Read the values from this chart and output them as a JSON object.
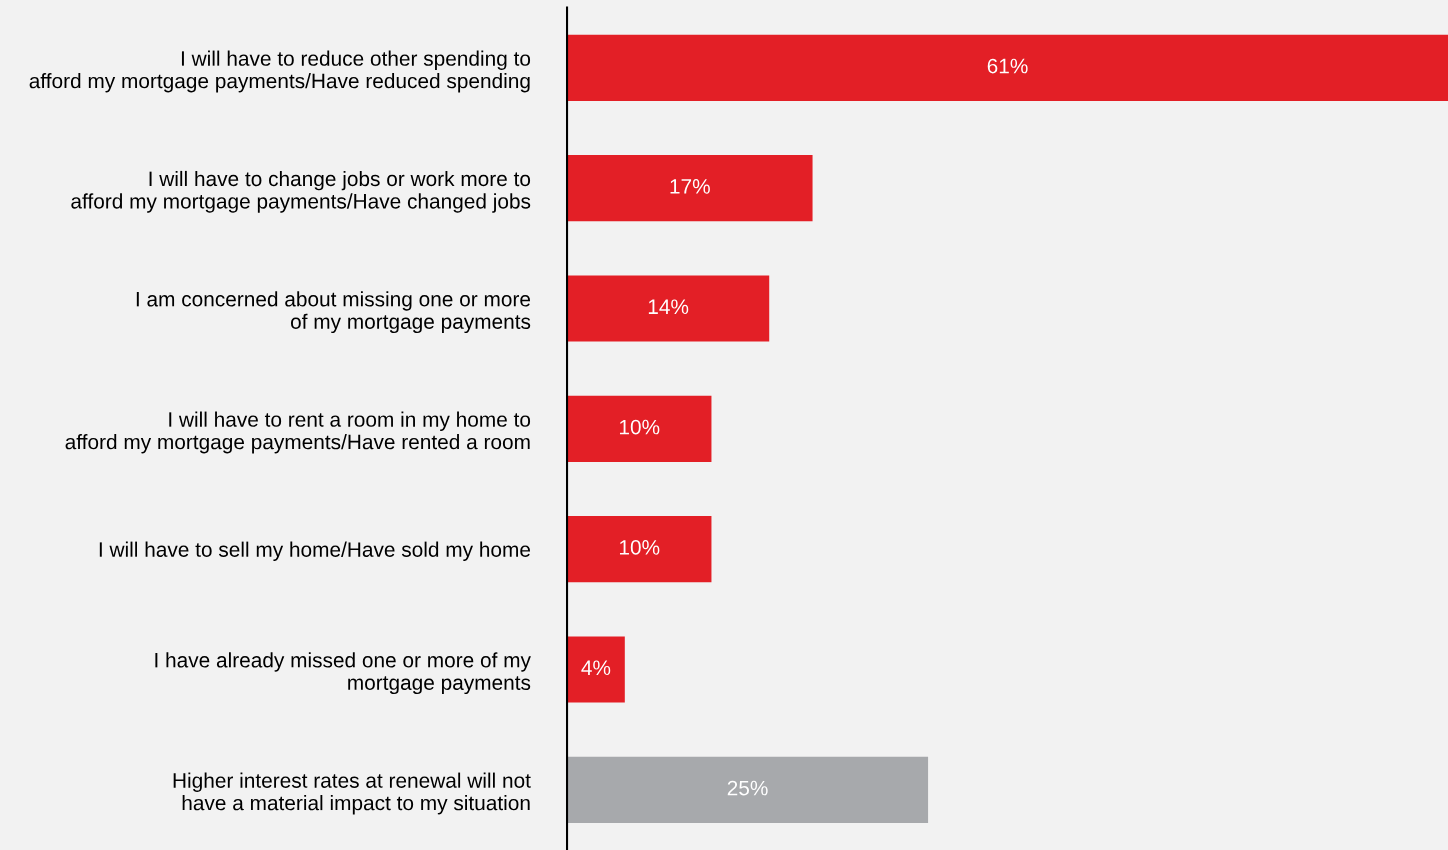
{
  "chart_data": {
    "type": "bar",
    "orientation": "horizontal",
    "categories": [
      "I will have to reduce other spending to\nafford my mortgage payments/Have reduced spending",
      "I will have to change jobs or work more to\nafford my mortgage payments/Have changed jobs",
      "I am concerned about missing one or more\nof my mortgage payments",
      "I will have to rent a room in my home to\nafford my mortgage payments/Have rented a room",
      "I will have to sell my home/Have sold my home",
      "I have already missed one or more of my\nmortgage payments",
      "Higher interest rates at renewal will not\nhave a material impact to my situation"
    ],
    "values": [
      61,
      17,
      14,
      10,
      10,
      4,
      25
    ],
    "colors": [
      "#e31f26",
      "#e31f26",
      "#e31f26",
      "#e31f26",
      "#e31f26",
      "#e31f26",
      "#a7a9ac"
    ],
    "value_labels": [
      "61%",
      "17%",
      "14%",
      "10%",
      "10%",
      "4%",
      "25%"
    ],
    "tick_labels": "y",
    "grid": false,
    "legend": false
  }
}
